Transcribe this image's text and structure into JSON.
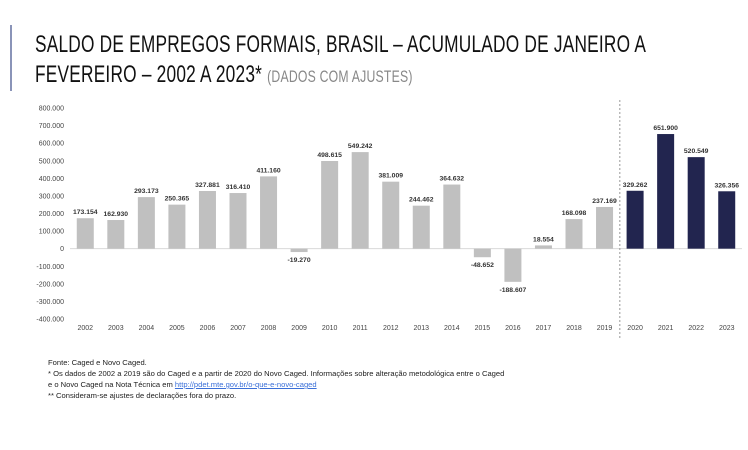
{
  "title": {
    "line1": "SALDO DE EMPREGOS FORMAIS, BRASIL – ACUMULADO DE JANEIRO A",
    "line2": "FEVEREIRO – 2002 A 2023*",
    "subtitle": "(DADOS COM AJUSTES)"
  },
  "chart_data": {
    "type": "bar",
    "categories": [
      "2002",
      "2003",
      "2004",
      "2005",
      "2006",
      "2007",
      "2008",
      "2009",
      "2010",
      "2011",
      "2012",
      "2013",
      "2014",
      "2015",
      "2016",
      "2017",
      "2018",
      "2019",
      "2020",
      "2021",
      "2022",
      "2023"
    ],
    "values": [
      173154,
      162930,
      293173,
      250365,
      327881,
      316410,
      411160,
      -19270,
      498615,
      549242,
      381009,
      244462,
      364632,
      -48652,
      -188607,
      18554,
      168098,
      237169,
      329262,
      651900,
      520549,
      326356
    ],
    "data_labels": [
      "173.154",
      "162.930",
      "293.173",
      "250.365",
      "327.881",
      "316.410",
      "411.160",
      "-19.270",
      "498.615",
      "549.242",
      "381.009",
      "244.462",
      "364.632",
      "-48.652",
      "-188.607",
      "18.554",
      "168.098",
      "237.169",
      "329.262",
      "651.900",
      "520.549",
      "326.356"
    ],
    "yticks": [
      "800.000",
      "700.000",
      "600.000",
      "500.000",
      "400.000",
      "300.000",
      "200.000",
      "100.000",
      "0",
      "-100.000",
      "-200.000",
      "-300.000",
      "-400.000"
    ],
    "ylim": [
      -400000,
      800000
    ],
    "grid": false,
    "colors": {
      "caged": "#c0c0c0",
      "novo_caged": "#22254f",
      "divider": "#999999"
    },
    "divider_between": [
      "2019",
      "2020"
    ]
  },
  "notes": {
    "source": "Fonte: Caged e Novo Caged.",
    "note1": "* Os dados de 2002 a 2019 são do Caged e a partir de 2020 do Novo Caged. Informações sobre alteração metodológica entre o Caged",
    "note1b": "e o Novo Caged na Nota Técnica em ",
    "link": "http://pdet.mte.gov.br/o-que-e-novo-caged",
    "note2": "** Consideram-se ajustes de declarações fora do prazo."
  }
}
